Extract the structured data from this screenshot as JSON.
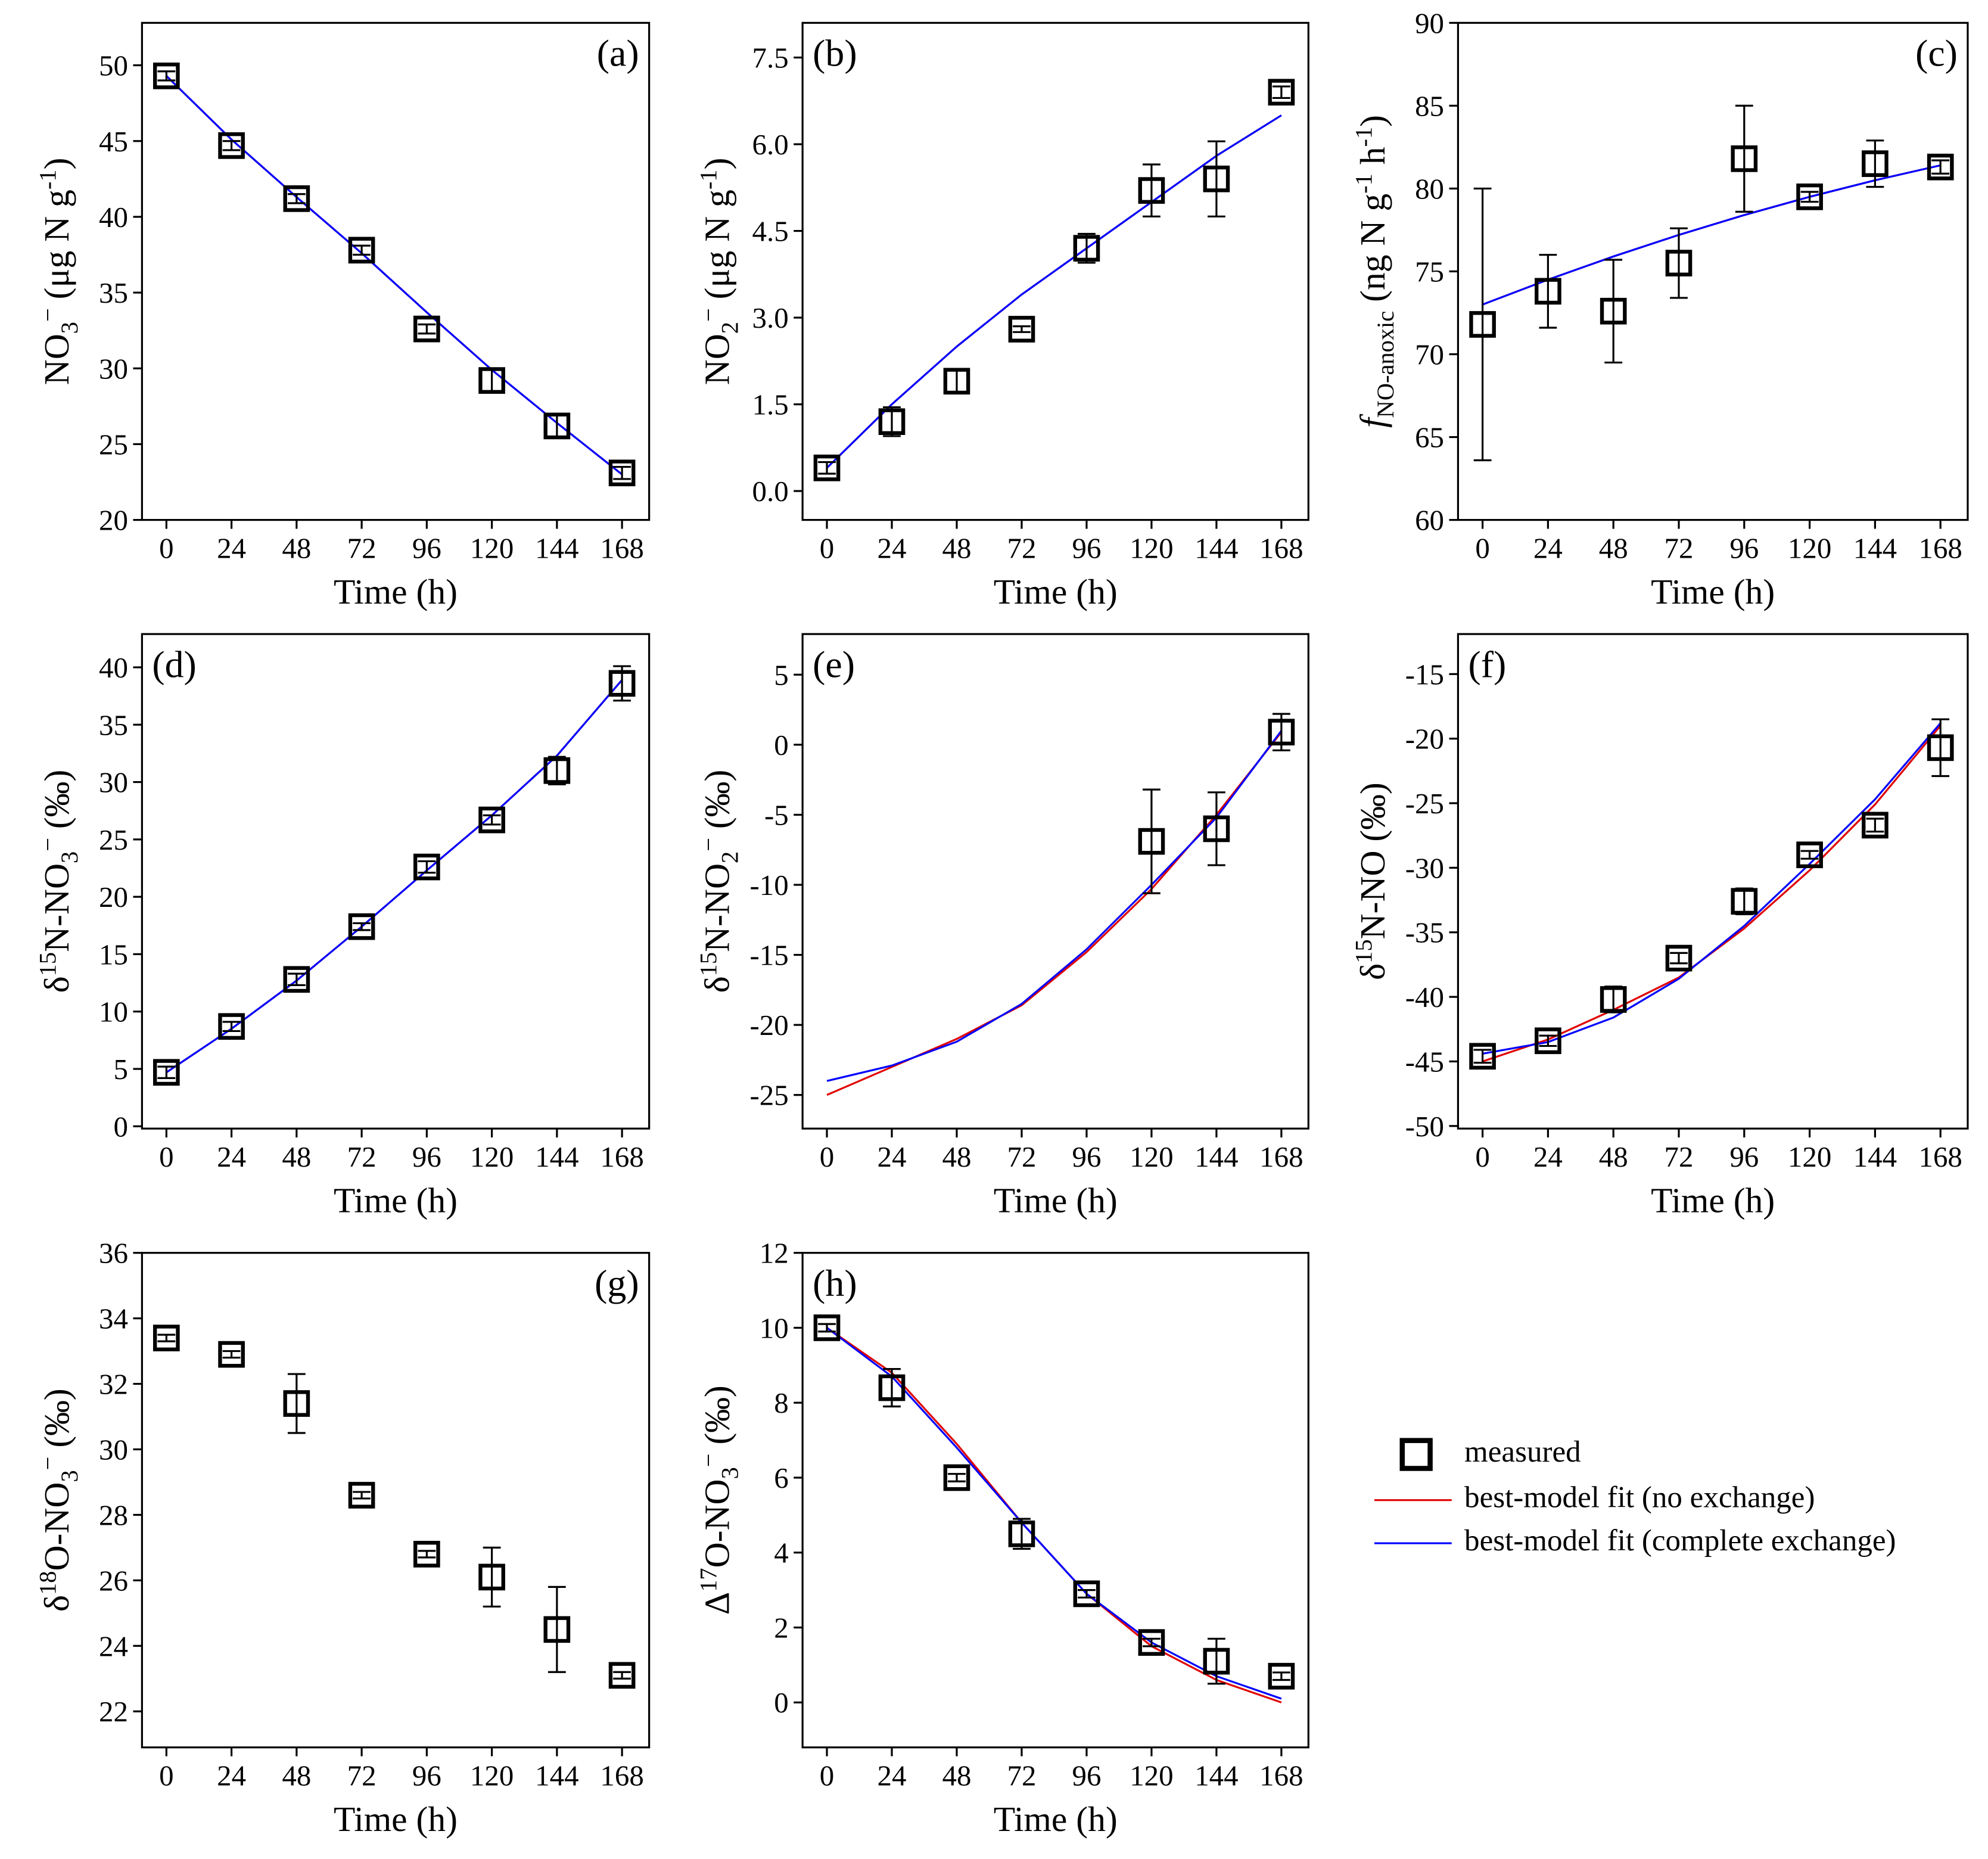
{
  "chart_data": [
    {
      "type": "scatter",
      "panel_label": "(a)",
      "label_corner": "top-right",
      "xlabel": "Time (h)",
      "ylabel": [
        {
          "text": "NO"
        },
        {
          "text": "3",
          "shift": "sub"
        },
        {
          "text": "−",
          "shift": "sup"
        },
        {
          "text": " (μg N g"
        },
        {
          "text": "-1",
          "shift": "sup"
        },
        {
          "text": ")"
        }
      ],
      "x": [
        0,
        24,
        48,
        72,
        96,
        120,
        144,
        168
      ],
      "xlim": [
        -9,
        178
      ],
      "xticks": [
        0,
        24,
        48,
        72,
        96,
        120,
        144,
        168
      ],
      "ylim": [
        20,
        52.8
      ],
      "yticks": [
        20,
        25,
        30,
        35,
        40,
        45,
        50
      ],
      "measured": {
        "values": [
          49.3,
          44.7,
          41.2,
          37.8,
          32.6,
          29.2,
          26.2,
          23.1
        ],
        "errors": [
          0.3,
          0.3,
          0.3,
          0.3,
          0.3,
          0.8,
          0.8,
          0.4
        ]
      },
      "fits": [
        {
          "color": "#e00000",
          "values": [
            49.3,
            45.1,
            41.3,
            37.6,
            33.7,
            29.9,
            26.4,
            23.0
          ]
        },
        {
          "color": "#0000ff",
          "values": [
            49.3,
            45.1,
            41.3,
            37.6,
            33.7,
            29.9,
            26.4,
            23.0
          ]
        }
      ]
    },
    {
      "type": "scatter",
      "panel_label": "(b)",
      "label_corner": "top-left",
      "xlabel": "Time (h)",
      "ylabel": [
        {
          "text": "NO"
        },
        {
          "text": "2",
          "shift": "sub"
        },
        {
          "text": "−",
          "shift": "sup"
        },
        {
          "text": " (μg N g"
        },
        {
          "text": "-1",
          "shift": "sup"
        },
        {
          "text": ")"
        }
      ],
      "x": [
        0,
        24,
        48,
        72,
        96,
        120,
        144,
        168
      ],
      "xlim": [
        -9,
        178
      ],
      "xticks": [
        0,
        24,
        48,
        72,
        96,
        120,
        144,
        168
      ],
      "ylim": [
        -0.5,
        8.1
      ],
      "yticks": [
        {
          "value": 0,
          "label": "0.0"
        },
        1.5,
        {
          "value": 3,
          "label": "3.0"
        },
        4.5,
        {
          "value": 6,
          "label": "6.0"
        },
        7.5
      ],
      "measured": {
        "values": [
          0.4,
          1.2,
          1.9,
          2.8,
          4.2,
          5.2,
          5.4,
          6.9
        ],
        "errors": [
          0.1,
          0.25,
          0.2,
          0.05,
          0.25,
          0.45,
          0.65,
          0.1
        ]
      },
      "fits": [
        {
          "color": "#e00000",
          "values": [
            0.4,
            1.5,
            2.5,
            3.4,
            4.2,
            5.0,
            5.8,
            6.5
          ]
        },
        {
          "color": "#0000ff",
          "values": [
            0.4,
            1.5,
            2.5,
            3.4,
            4.2,
            5.0,
            5.8,
            6.5
          ]
        }
      ]
    },
    {
      "type": "scatter",
      "panel_label": "(c)",
      "label_corner": "top-right",
      "xlabel": "Time (h)",
      "ylabel": [
        {
          "text": "f",
          "italic": true
        },
        {
          "text": "NO-anoxic",
          "shift": "sub"
        },
        {
          "text": " (ng N g"
        },
        {
          "text": "-1",
          "shift": "sup"
        },
        {
          "text": " h"
        },
        {
          "text": "-1",
          "shift": "sup"
        },
        {
          "text": ")"
        }
      ],
      "x": [
        0,
        24,
        48,
        72,
        96,
        120,
        144,
        168
      ],
      "xlim": [
        -9,
        178
      ],
      "xticks": [
        0,
        24,
        48,
        72,
        96,
        120,
        144,
        168
      ],
      "ylim": [
        60,
        90
      ],
      "yticks": [
        60,
        65,
        70,
        75,
        80,
        85,
        90
      ],
      "measured": {
        "values": [
          71.8,
          73.8,
          72.6,
          75.5,
          81.8,
          79.5,
          81.5,
          81.3
        ],
        "errors": [
          8.2,
          2.2,
          3.1,
          2.1,
          3.2,
          0.3,
          1.4,
          0.4
        ]
      },
      "fits": [
        {
          "color": "#e00000",
          "values": [
            73.0,
            74.5,
            75.9,
            77.2,
            78.4,
            79.5,
            80.5,
            81.4
          ]
        },
        {
          "color": "#0000ff",
          "values": [
            73.0,
            74.5,
            75.9,
            77.2,
            78.4,
            79.5,
            80.5,
            81.4
          ]
        }
      ]
    },
    {
      "type": "scatter",
      "panel_label": "(d)",
      "label_corner": "top-left",
      "xlabel": "Time (h)",
      "ylabel": [
        {
          "text": "δ"
        },
        {
          "text": "15",
          "shift": "sup"
        },
        {
          "text": "N-NO"
        },
        {
          "text": "3",
          "shift": "sub"
        },
        {
          "text": "−",
          "shift": "sup"
        },
        {
          "text": " (‰)"
        }
      ],
      "x": [
        0,
        24,
        48,
        72,
        96,
        120,
        144,
        168
      ],
      "xlim": [
        -9,
        178
      ],
      "xticks": [
        0,
        24,
        48,
        72,
        96,
        120,
        144,
        168
      ],
      "ylim": [
        -0.2,
        42.9
      ],
      "yticks": [
        0,
        5,
        10,
        15,
        20,
        25,
        30,
        35,
        40
      ],
      "measured": {
        "values": [
          4.7,
          8.7,
          12.8,
          17.4,
          22.6,
          26.7,
          31.0,
          38.6
        ],
        "errors": [
          0.5,
          0.4,
          0.5,
          0.3,
          0.5,
          0.4,
          1.2,
          1.5
        ]
      },
      "fits": [
        {
          "color": "#e00000",
          "values": [
            4.7,
            8.5,
            12.7,
            17.4,
            22.3,
            27.1,
            32.3,
            38.9
          ]
        },
        {
          "color": "#0000ff",
          "values": [
            4.7,
            8.5,
            12.7,
            17.4,
            22.3,
            27.1,
            32.3,
            38.9
          ]
        }
      ]
    },
    {
      "type": "scatter",
      "panel_label": "(e)",
      "label_corner": "top-left",
      "xlabel": "Time (h)",
      "ylabel": [
        {
          "text": "δ"
        },
        {
          "text": "15",
          "shift": "sup"
        },
        {
          "text": "N-NO"
        },
        {
          "text": "2",
          "shift": "sub"
        },
        {
          "text": "−",
          "shift": "sup"
        },
        {
          "text": " (‰)"
        }
      ],
      "x": [
        0,
        24,
        48,
        72,
        96,
        120,
        144,
        168
      ],
      "xlim": [
        -9,
        178
      ],
      "xticks": [
        0,
        24,
        48,
        72,
        96,
        120,
        144,
        168
      ],
      "ylim": [
        -27.4,
        7.9
      ],
      "yticks": [
        -25,
        -20,
        -15,
        -10,
        -5,
        0,
        5
      ],
      "measured": {
        "values": [
          null,
          null,
          null,
          null,
          null,
          -6.9,
          -6.0,
          0.9
        ],
        "errors": [
          null,
          null,
          null,
          null,
          null,
          3.7,
          2.6,
          1.3
        ]
      },
      "fits": [
        {
          "color": "#e00000",
          "values": [
            -25.0,
            -23.0,
            -21.0,
            -18.6,
            -14.8,
            -10.3,
            -5.0,
            0.9
          ]
        },
        {
          "color": "#0000ff",
          "values": [
            -24.0,
            -22.9,
            -21.2,
            -18.5,
            -14.6,
            -10.0,
            -5.2,
            1.0
          ]
        }
      ]
    },
    {
      "type": "scatter",
      "panel_label": "(f)",
      "label_corner": "top-left",
      "xlabel": "Time (h)",
      "ylabel": [
        {
          "text": "δ"
        },
        {
          "text": "15",
          "shift": "sup"
        },
        {
          "text": "N-NO (‰)"
        }
      ],
      "x": [
        0,
        24,
        48,
        72,
        96,
        120,
        144,
        168
      ],
      "xlim": [
        -9,
        178
      ],
      "xticks": [
        0,
        24,
        48,
        72,
        96,
        120,
        144,
        168
      ],
      "ylim": [
        -50.2,
        -11.9
      ],
      "yticks": [
        -50,
        -45,
        -40,
        -35,
        -30,
        -25,
        -20,
        -15
      ],
      "measured": {
        "values": [
          -44.6,
          -43.4,
          -40.2,
          -37.0,
          -32.6,
          -29.0,
          -26.7,
          -20.7
        ],
        "errors": [
          0.5,
          0.4,
          1.0,
          0.4,
          1.0,
          0.3,
          0.5,
          2.2
        ]
      },
      "fits": [
        {
          "color": "#e00000",
          "values": [
            -45.0,
            -43.3,
            -41.0,
            -38.5,
            -34.7,
            -30.2,
            -25.1,
            -19.0
          ]
        },
        {
          "color": "#0000ff",
          "values": [
            -44.4,
            -43.5,
            -41.6,
            -38.6,
            -34.5,
            -29.7,
            -24.7,
            -18.8
          ]
        }
      ]
    },
    {
      "type": "scatter",
      "panel_label": "(g)",
      "label_corner": "top-right",
      "xlabel": "Time (h)",
      "ylabel": [
        {
          "text": "δ"
        },
        {
          "text": "18",
          "shift": "sup"
        },
        {
          "text": "O-NO"
        },
        {
          "text": "3",
          "shift": "sub"
        },
        {
          "text": "−",
          "shift": "sup"
        },
        {
          "text": " (‰)"
        }
      ],
      "x": [
        0,
        24,
        48,
        72,
        96,
        120,
        144,
        168
      ],
      "xlim": [
        -9,
        178
      ],
      "xticks": [
        0,
        24,
        48,
        72,
        96,
        120,
        144,
        168
      ],
      "ylim": [
        20.9,
        36
      ],
      "yticks": [
        22,
        24,
        26,
        28,
        30,
        32,
        34,
        36
      ],
      "measured": {
        "values": [
          33.4,
          32.9,
          31.4,
          28.6,
          26.8,
          26.1,
          24.5,
          23.1
        ],
        "errors": [
          0.1,
          0.1,
          0.9,
          0.1,
          0.1,
          0.9,
          1.3,
          0.1
        ]
      }
    },
    {
      "type": "scatter",
      "panel_label": "(h)",
      "label_corner": "top-left",
      "xlabel": "Time (h)",
      "ylabel": [
        {
          "text": "Δ"
        },
        {
          "text": "17",
          "shift": "sup"
        },
        {
          "text": "O-NO"
        },
        {
          "text": "3",
          "shift": "sub"
        },
        {
          "text": "−",
          "shift": "sup"
        },
        {
          "text": " (‰)"
        }
      ],
      "x": [
        0,
        24,
        48,
        72,
        96,
        120,
        144,
        168
      ],
      "xlim": [
        -9,
        178
      ],
      "xticks": [
        0,
        24,
        48,
        72,
        96,
        120,
        144,
        168
      ],
      "ylim": [
        -1.2,
        12
      ],
      "yticks": [
        0,
        2,
        4,
        6,
        8,
        10,
        12
      ],
      "measured": {
        "values": [
          10.0,
          8.4,
          6.0,
          4.5,
          2.9,
          1.6,
          1.1,
          0.7
        ],
        "errors": [
          0.1,
          0.5,
          0.1,
          0.4,
          0.1,
          0.1,
          0.6,
          0.1
        ]
      },
      "fits": [
        {
          "color": "#e00000",
          "values": [
            10.0,
            8.8,
            6.9,
            4.8,
            2.9,
            1.5,
            0.6,
            0.0
          ]
        },
        {
          "color": "#0000ff",
          "values": [
            10.0,
            8.7,
            6.8,
            4.8,
            2.9,
            1.6,
            0.7,
            0.1
          ]
        }
      ]
    }
  ],
  "legend": [
    {
      "label": "measured",
      "marker": "square"
    },
    {
      "label": "best-model fit (no exchange)",
      "color": "#e00000"
    },
    {
      "label": "best-model fit (complete exchange)",
      "color": "#0000ff"
    }
  ]
}
